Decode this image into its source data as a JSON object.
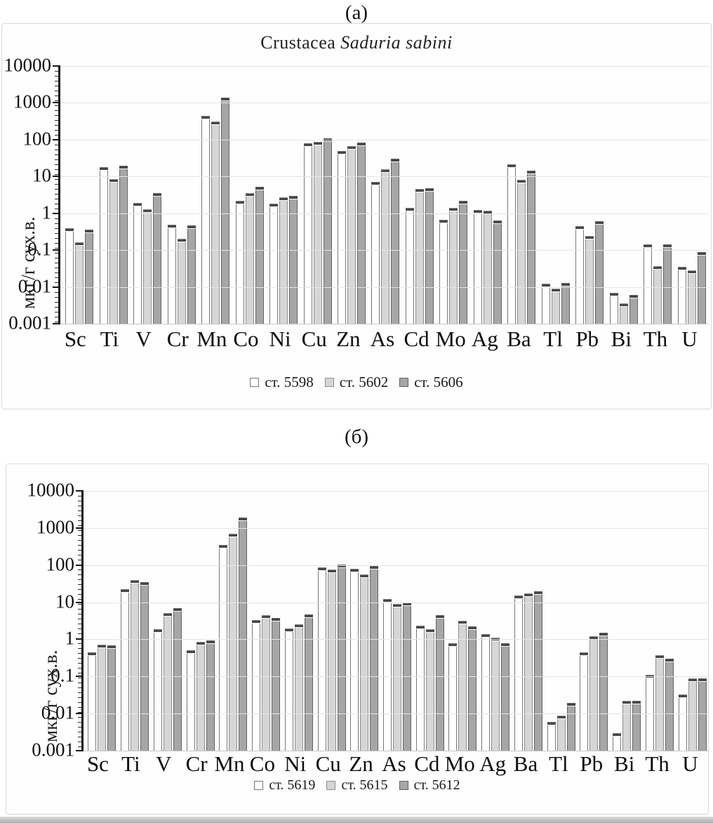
{
  "figure": {
    "panel_a_label": "(а)",
    "panel_b_label": "(б)"
  },
  "chart_data": [
    {
      "type": "bar",
      "panel_label": "(а)",
      "title": "Crustacea Saduria sabini",
      "title_prefix": "Crustacea ",
      "title_italic": "Saduria sabini",
      "ylabel": "мкг/г сух.в.",
      "yscale": "log",
      "ylim": [
        0.001,
        10000
      ],
      "ytick_labels": [
        "10000",
        "1000",
        "100",
        "10",
        "1",
        "0.1",
        "0.01",
        "0.001"
      ],
      "grid": true,
      "error_caps": true,
      "legend_position": "bottom",
      "categories": [
        "Sc",
        "Ti",
        "V",
        "Cr",
        "Mn",
        "Co",
        "Ni",
        "Cu",
        "Zn",
        "As",
        "Cd",
        "Mo",
        "Ag",
        "Ba",
        "Tl",
        "Pb",
        "Bi",
        "Th",
        "U"
      ],
      "series": [
        {
          "name": "ст. 5598",
          "color": "#ffffff",
          "border": "#787878",
          "values": [
            0.4,
            18,
            1.9,
            0.48,
            450,
            2.2,
            1.8,
            81,
            50,
            7,
            1.4,
            0.68,
            1.25,
            21,
            0.012,
            0.45,
            0.007,
            0.14,
            0.035
          ]
        },
        {
          "name": "ст. 5602",
          "color": "#d6d6d6",
          "border": "#8e8e8e",
          "values": [
            0.16,
            8.5,
            1.3,
            0.2,
            310,
            3.6,
            2.7,
            87,
            68,
            16,
            4.5,
            1.4,
            1.2,
            8.2,
            0.009,
            0.24,
            0.0035,
            0.037,
            0.028
          ]
        },
        {
          "name": "ст. 5606",
          "color": "#a6a6a6",
          "border": "#636363",
          "values": [
            0.36,
            20,
            3.5,
            0.47,
            1400,
            5.2,
            2.9,
            110,
            84,
            30,
            4.8,
            2.2,
            0.65,
            14.5,
            0.013,
            0.6,
            0.006,
            0.14,
            0.09
          ]
        }
      ]
    },
    {
      "type": "bar",
      "panel_label": "(б)",
      "ylabel": "мкг/г сух.в.",
      "yscale": "log",
      "ylim": [
        0.001,
        10000
      ],
      "ytick_labels": [
        "10000",
        "1000",
        "100",
        "10",
        "1",
        "0.1",
        "0.01",
        "0.001"
      ],
      "grid": true,
      "error_caps": true,
      "legend_position": "bottom",
      "categories": [
        "Sc",
        "Ti",
        "V",
        "Cr",
        "Mn",
        "Co",
        "Ni",
        "Cu",
        "Zn",
        "As",
        "Cd",
        "Mo",
        "Ag",
        "Ba",
        "Tl",
        "Pb",
        "Bi",
        "Th",
        "U"
      ],
      "series": [
        {
          "name": "ст. 5619",
          "color": "#ffffff",
          "border": "#787878",
          "values": [
            0.45,
            22,
            1.9,
            0.5,
            350,
            3.3,
            2.0,
            85,
            80,
            12,
            2.3,
            0.8,
            1.4,
            15,
            0.006,
            0.45,
            0.003,
            0.11,
            0.033
          ]
        },
        {
          "name": "ст. 5615",
          "color": "#d6d6d6",
          "border": "#8e8e8e",
          "values": [
            0.72,
            40,
            5.0,
            0.85,
            700,
            4.5,
            2.6,
            75,
            55,
            9,
            1.9,
            3.2,
            1.1,
            17,
            0.009,
            1.2,
            0.022,
            0.38,
            0.09
          ]
        },
        {
          "name": "ст. 5612",
          "color": "#a6a6a6",
          "border": "#636363",
          "values": [
            0.7,
            35,
            7.0,
            0.95,
            1900,
            3.7,
            4.6,
            105,
            95,
            10,
            4.4,
            2.2,
            0.8,
            20,
            0.019,
            1.5,
            0.022,
            0.3,
            0.09
          ]
        }
      ]
    }
  ]
}
